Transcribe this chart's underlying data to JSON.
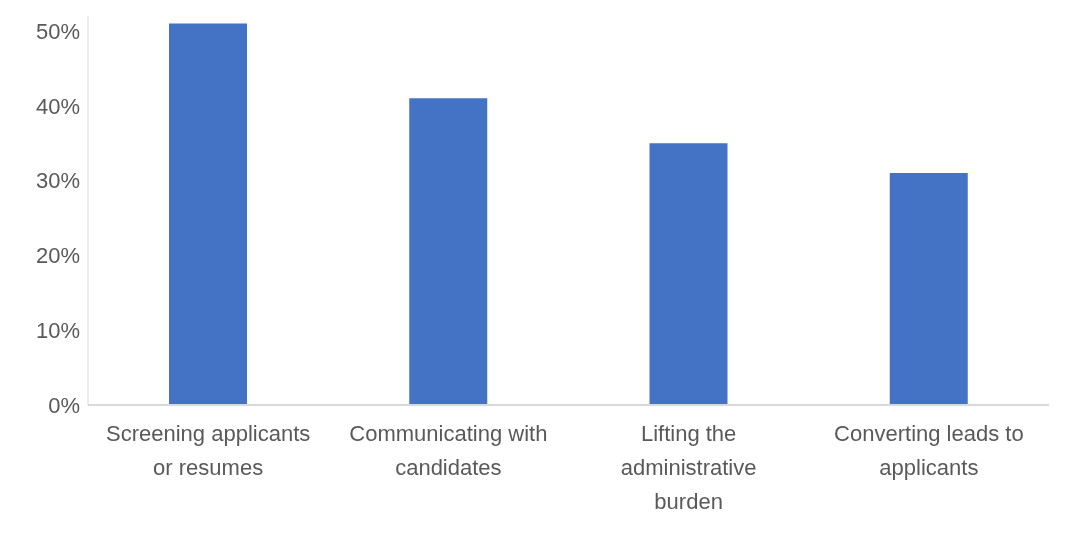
{
  "chart_data": {
    "type": "bar",
    "categories": [
      "Screening applicants or resumes",
      "Communicating with candidates",
      "Lifting the administrative burden",
      "Converting leads to applicants"
    ],
    "values": [
      51,
      41,
      35,
      31
    ],
    "color": "#4472c4",
    "ylim": [
      0,
      52
    ],
    "yticks": [
      {
        "value": 0,
        "label": "0%"
      },
      {
        "value": 10,
        "label": "10%"
      },
      {
        "value": 20,
        "label": "20%"
      },
      {
        "value": 30,
        "label": "30%"
      },
      {
        "value": 40,
        "label": "40%"
      },
      {
        "value": 50,
        "label": "50%"
      }
    ],
    "grid": false,
    "legend": false
  }
}
